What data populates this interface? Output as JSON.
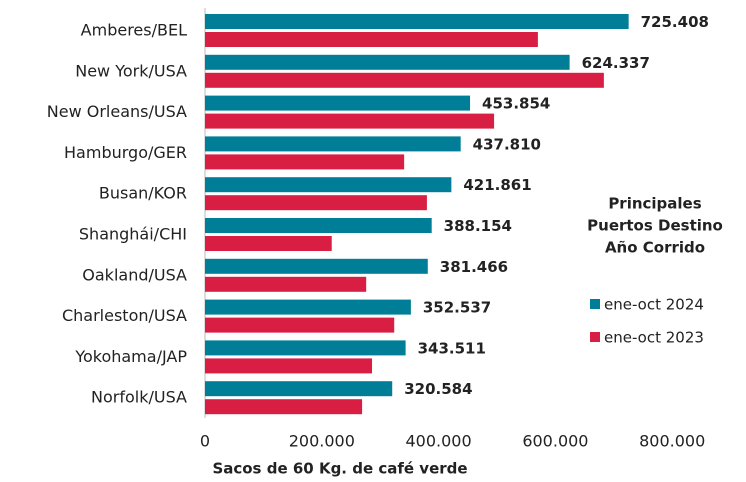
{
  "chart_data": {
    "type": "bar",
    "orientation": "horizontal",
    "categories": [
      "Amberes/BEL",
      "New York/USA",
      "New Orleans/USA",
      "Hamburgo/GER",
      "Busan/KOR",
      "Shanghái/CHI",
      "Oakland/USA",
      "Charleston/USA",
      "Yokohama/JAP",
      "Norfolk/USA"
    ],
    "series": [
      {
        "name": "ene-oct 2024",
        "color": "#007e98",
        "values": [
          725408,
          624337,
          453854,
          437810,
          421861,
          388154,
          381466,
          352537,
          343511,
          320584
        ],
        "value_labels": [
          "725.408",
          "624.337",
          "453.854",
          "437.810",
          "421.861",
          "388.154",
          "381.466",
          "352.537",
          "343.511",
          "320.584"
        ]
      },
      {
        "name": "ene-oct 2023",
        "color": "#d81f43",
        "values": [
          570000,
          683000,
          495000,
          341000,
          380000,
          217000,
          276000,
          324000,
          286000,
          269000
        ]
      }
    ],
    "xlim": [
      0,
      800000
    ],
    "xticks": [
      0,
      {
        "value": 200000,
        "label": "200.000"
      },
      {
        "value": 400000,
        "label": "400.000"
      },
      {
        "value": 600000,
        "label": "600.000"
      },
      {
        "value": 800000,
        "label": "800.000"
      }
    ],
    "xlabel": "Sacos de 60 Kg. de café verde",
    "legend_title": [
      "Principales",
      "Puertos Destino",
      "Año Corrido"
    ],
    "legend": "right"
  }
}
